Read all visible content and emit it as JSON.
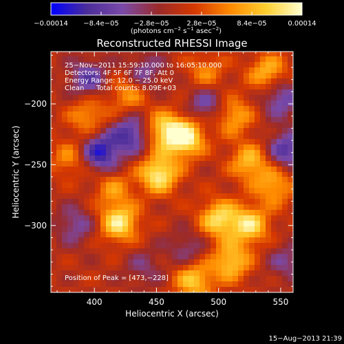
{
  "chart_data": {
    "type": "heatmap",
    "title": "Reconstructed RHESSI Image",
    "xlabel": "Heliocentric X (arcsec)",
    "ylabel": "Heliocentric Y (arcsec)",
    "xlim": [
      365,
      560
    ],
    "ylim": [
      -355,
      -157
    ],
    "x_ticks": [
      400,
      450,
      500,
      550
    ],
    "x_tick_labels": [
      "400",
      "450",
      "500",
      "550"
    ],
    "y_ticks": [
      -200,
      -250,
      -300
    ],
    "y_tick_labels": [
      "−200",
      "−250",
      "−300"
    ],
    "colorbar": {
      "range": [
        -0.00014,
        0.00014
      ],
      "tick_values": [
        -0.00014,
        -8.4e-05,
        -2.8e-05,
        2.8e-05,
        8.4e-05,
        0.00014
      ],
      "tick_labels": [
        "−0.00014",
        "−8.4e−05",
        "−2.8e−05",
        "2.8e−05",
        "8.4e−05",
        "0.00014"
      ],
      "label_main": "(photons cm",
      "label_sup1": "−2",
      "label_mid": " s",
      "label_sup2": "−1",
      "label_tail": " asec",
      "label_sup3": "−2",
      "label_end": ")",
      "stops": [
        "#0000ff",
        "#4b2d9a",
        "#7a4aa8",
        "#9a2a2a",
        "#d63800",
        "#ff8a00",
        "#ffcf30",
        "#ffffd0"
      ]
    },
    "annotations": [
      "25−Nov−2011 15:59:10.000 to 16:05:10.000",
      "Detectors: 4F 5F 6F 7F 8F, Att 0",
      "Energy Range: 12.0 − 25.0 keV",
      "Clean",
      "Total counts: 8.09E+03"
    ],
    "peak_label": "Position of Peak = [473,−228]",
    "timestamp": "15−Aug−2013 21:39",
    "field": {
      "description_units": "photons cm^-2 s^-1 asec^-2",
      "bright_regions": [
        {
          "x": 420,
          "y": -298,
          "value": 0.00012
        },
        {
          "x": 452,
          "y": -258,
          "value": 0.00013
        },
        {
          "x": 473,
          "y": -228,
          "value": 0.00014
        },
        {
          "x": 455,
          "y": -222,
          "value": 0.0001
        },
        {
          "x": 500,
          "y": -295,
          "value": 0.00011
        },
        {
          "x": 525,
          "y": -300,
          "value": 0.00011
        },
        {
          "x": 510,
          "y": -330,
          "value": 0.0001
        },
        {
          "x": 480,
          "y": -345,
          "value": 0.0001
        },
        {
          "x": 540,
          "y": -175,
          "value": 9e-05
        },
        {
          "x": 512,
          "y": -210,
          "value": 8e-05
        },
        {
          "x": 525,
          "y": -248,
          "value": 9e-05
        },
        {
          "x": 545,
          "y": -268,
          "value": 8e-05
        },
        {
          "x": 395,
          "y": -210,
          "value": 7e-05
        },
        {
          "x": 380,
          "y": -245,
          "value": 6e-05
        },
        {
          "x": 427,
          "y": -192,
          "value": 7e-05
        },
        {
          "x": 490,
          "y": -175,
          "value": 6e-05
        },
        {
          "x": 415,
          "y": -270,
          "value": 6e-05
        }
      ],
      "dark_regions": [
        {
          "x": 405,
          "y": -240,
          "value": -0.00012
        },
        {
          "x": 430,
          "y": -225,
          "value": -0.0001
        },
        {
          "x": 395,
          "y": -180,
          "value": -8e-05
        },
        {
          "x": 440,
          "y": -175,
          "value": -6e-05
        },
        {
          "x": 490,
          "y": -200,
          "value": -7e-05
        },
        {
          "x": 550,
          "y": -195,
          "value": -8e-05
        },
        {
          "x": 555,
          "y": -238,
          "value": -9e-05
        },
        {
          "x": 475,
          "y": -320,
          "value": -5e-05
        },
        {
          "x": 385,
          "y": -300,
          "value": -6e-05
        },
        {
          "x": 440,
          "y": -335,
          "value": -4e-05
        },
        {
          "x": 555,
          "y": -330,
          "value": -5e-05
        }
      ]
    }
  }
}
